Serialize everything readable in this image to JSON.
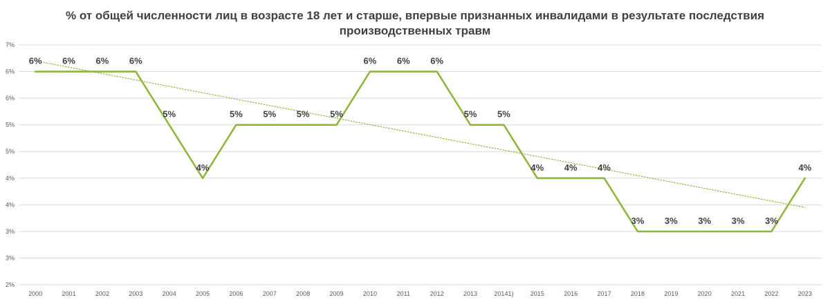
{
  "chart_data": {
    "type": "line",
    "title_lines": [
      "% от общей численности лиц в возрасте 18 лет и старше, впервые признанных инвалидами в результате последствия",
      "производственных травм"
    ],
    "categories": [
      "2000",
      "2001",
      "2002",
      "2003",
      "2004",
      "2005",
      "2006",
      "2007",
      "2008",
      "2009",
      "2010",
      "2011",
      "2012",
      "2013",
      "20141)",
      "2015",
      "2016",
      "2017",
      "2018",
      "2019",
      "2020",
      "2021",
      "2022",
      "2023"
    ],
    "series": [
      {
        "name": "",
        "color": "#8fb73e",
        "values": [
          6.0,
          6.0,
          6.0,
          6.0,
          5.0,
          4.0,
          5.0,
          5.0,
          5.0,
          5.0,
          6.0,
          6.0,
          6.0,
          5.0,
          5.0,
          4.0,
          4.0,
          4.0,
          3.0,
          3.0,
          3.0,
          3.0,
          3.0,
          4.0
        ],
        "labels": [
          "6%",
          "6%",
          "6%",
          "6%",
          "5%",
          "4%",
          "5%",
          "5%",
          "5%",
          "5%",
          "6%",
          "6%",
          "6%",
          "5%",
          "5%",
          "4%",
          "4%",
          "4%",
          "3%",
          "3%",
          "3%",
          "3%",
          "3%",
          "4%"
        ]
      }
    ],
    "trendline": {
      "type": "linear",
      "color": "#8fb73e",
      "style": "dotted",
      "start": 6.2,
      "end": 3.45
    },
    "y_ticks": [
      {
        "value": 2.0,
        "label": "2%"
      },
      {
        "value": 2.5,
        "label": "3%"
      },
      {
        "value": 3.0,
        "label": "3%"
      },
      {
        "value": 3.5,
        "label": "4%"
      },
      {
        "value": 4.0,
        "label": "4%"
      },
      {
        "value": 4.5,
        "label": "5%"
      },
      {
        "value": 5.0,
        "label": "5%"
      },
      {
        "value": 5.5,
        "label": "6%"
      },
      {
        "value": 6.0,
        "label": "6%"
      },
      {
        "value": 6.5,
        "label": "7%"
      }
    ],
    "ylim": [
      2.0,
      6.5
    ],
    "grid": true,
    "legend": "none",
    "xlabel": "",
    "ylabel": ""
  }
}
